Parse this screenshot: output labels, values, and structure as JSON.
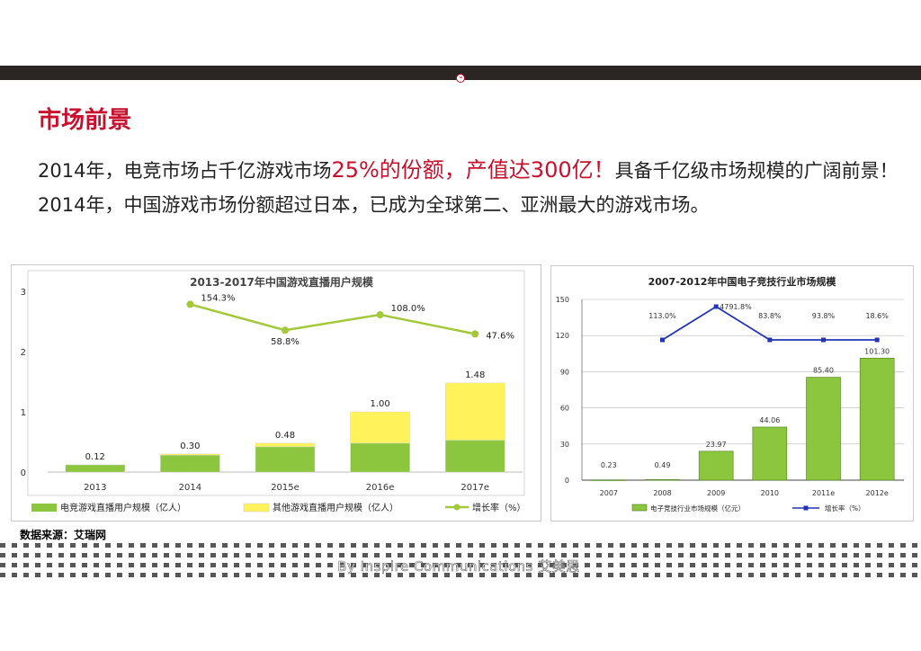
{
  "section_title": "市场前景",
  "intro": {
    "part1": "2014年，电竞市场占千亿游戏市场",
    "highlight1": "25%的份额，产值达300亿！",
    "part2": "具备千亿级市场规模的广阔前景！2014年，中国游戏市场份额超过日本，已成为全球第二、亚洲最大的游戏市场。"
  },
  "colors": {
    "brand_red": "#c8102e",
    "bar_green": "#8cc63f",
    "bar_yellow": "#fff25a",
    "line_green": "#a3c93a",
    "line_blue": "#2233b8"
  },
  "source_note": "数据来源：艾瑞网",
  "watermark": "By Inspire Communications 艾美思",
  "chart_data": [
    {
      "type": "bar",
      "stacked": true,
      "title": "2013-2017年中国游戏直播用户规模",
      "categories": [
        "2013",
        "2014",
        "2015e",
        "2016e",
        "2017e"
      ],
      "series": [
        {
          "name": "电竞游戏直播用户规模（亿人）",
          "values": [
            0.12,
            0.28,
            0.42,
            0.48,
            0.53
          ],
          "color": "#8cc63f"
        },
        {
          "name": "其他游戏直播用户规模（亿人）",
          "values": [
            0.0,
            0.02,
            0.06,
            0.52,
            0.95
          ],
          "color": "#fff25a"
        }
      ],
      "totals": [
        "0.12",
        "0.30",
        "0.48",
        "1.00",
        "1.48"
      ],
      "line_series": {
        "name": "增长率（%）",
        "categories": [
          "2014",
          "2015e",
          "2016e",
          "2017e"
        ],
        "values": [
          154.3,
          58.8,
          108.0,
          47.6
        ],
        "labels": [
          "154.3%",
          "58.8%",
          "108.0%",
          "47.6%"
        ],
        "color": "#a3c93a"
      },
      "yticks": [
        "0",
        "1",
        "2",
        "3"
      ],
      "ylim": [
        0,
        3
      ],
      "legend": "bottom"
    },
    {
      "type": "bar",
      "title": "2007-2012年中国电子竞技行业市场规模",
      "categories": [
        "2007",
        "2008",
        "2009",
        "2010",
        "2011e",
        "2012e"
      ],
      "series": [
        {
          "name": "电子竞技行业市场规模（亿元）",
          "values": [
            0.23,
            0.49,
            23.97,
            44.06,
            85.4,
            101.3
          ],
          "color": "#8cc63f"
        }
      ],
      "value_labels": [
        "0.23",
        "0.49",
        "23.97",
        "44.06",
        "85.40",
        "101.30"
      ],
      "line_series": {
        "name": "增长率（%）",
        "categories": [
          "2008",
          "2009",
          "2010",
          "2011e",
          "2012e"
        ],
        "values": [
          113.0,
          4791.8,
          83.8,
          93.8,
          18.6
        ],
        "labels": [
          "113.0%",
          "4791.8%",
          "83.8%",
          "93.8%",
          "18.6%"
        ],
        "color": "#2233b8"
      },
      "yticks": [
        "0",
        "30",
        "60",
        "90",
        "120",
        "150"
      ],
      "ylim": [
        0,
        150
      ],
      "legend": "bottom",
      "grid": true
    }
  ]
}
